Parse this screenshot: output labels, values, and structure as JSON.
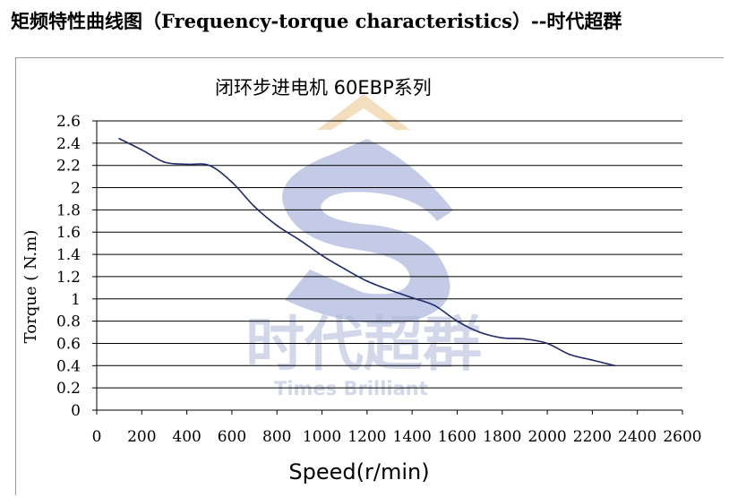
{
  "page": {
    "heading": "矩频特性曲线图（Frequency-torque characteristics）--时代超群"
  },
  "watermark": {
    "chinese": "时代超群",
    "english": "Times Brilliant",
    "colors": {
      "logo": "#c4cbe6",
      "chevron": "#f3dfbe",
      "text": "#aeb8da"
    }
  },
  "chart_data": {
    "type": "line",
    "title": "闭环步进电机 60EBP系列",
    "xlabel": "Speed(r/min)",
    "ylabel": "Torque ( N.m)",
    "xlim": [
      0,
      2600
    ],
    "ylim": [
      0,
      2.6
    ],
    "x_ticks": [
      "0",
      "200",
      "400",
      "600",
      "800",
      "1000",
      "1200",
      "1400",
      "1600",
      "1800",
      "2000",
      "2200",
      "2400",
      "2600"
    ],
    "y_ticks": [
      "0",
      "0.2",
      "0.4",
      "0.6",
      "0.8",
      "1",
      "1.2",
      "1.4",
      "1.6",
      "1.8",
      "2",
      "2.2",
      "2.4",
      "2.6"
    ],
    "grid": "horizontal",
    "line_color": "#1f2a6b",
    "series": [
      {
        "x": [
          100,
          200,
          300,
          400,
          500,
          600,
          700,
          800,
          900,
          1000,
          1100,
          1200,
          1300,
          1400,
          1500,
          1600,
          1700,
          1800,
          1900,
          2000,
          2100,
          2200,
          2300
        ],
        "values": [
          2.44,
          2.34,
          2.23,
          2.21,
          2.2,
          2.05,
          1.83,
          1.66,
          1.53,
          1.39,
          1.27,
          1.16,
          1.08,
          1.01,
          0.94,
          0.8,
          0.7,
          0.65,
          0.64,
          0.6,
          0.5,
          0.45,
          0.4
        ]
      }
    ]
  }
}
